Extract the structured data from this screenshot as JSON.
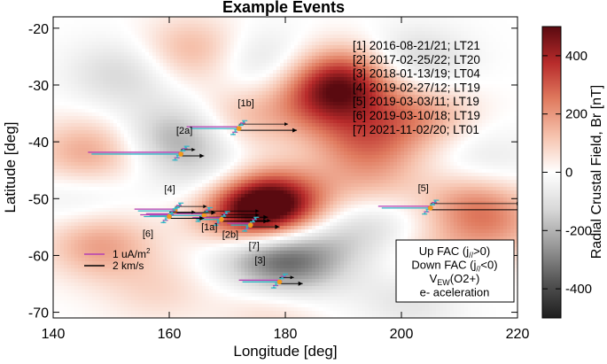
{
  "chart_data": {
    "type": "heatmap",
    "title": "Example Events",
    "xlabel": "Longitude [deg]",
    "ylabel": "Latitude [deg]",
    "xlim": [
      140,
      220
    ],
    "ylim": [
      -71,
      -18
    ],
    "xticks": [
      140,
      160,
      180,
      200,
      220
    ],
    "yticks": [
      -70,
      -60,
      -50,
      -40,
      -30,
      -20
    ],
    "colorbar": {
      "label": "Radial Crustal Field, Br [nT]",
      "range": [
        -500,
        500
      ],
      "ticks": [
        -400,
        -200,
        0,
        200,
        400
      ],
      "colors": [
        "#1e1e1e",
        "#555555",
        "#9a9a9a",
        "#d9d9d9",
        "#ffffff",
        "#f6c2ad",
        "#e07b5f",
        "#b82b2b",
        "#5a0a10"
      ]
    },
    "field_features": [
      {
        "lon": 178,
        "lat": -51,
        "br": 470
      },
      {
        "lon": 173,
        "lat": -52.5,
        "br": 300
      },
      {
        "lon": 190,
        "lat": -29,
        "br": 340
      },
      {
        "lon": 187,
        "lat": -33,
        "br": 240
      },
      {
        "lon": 194,
        "lat": -40,
        "br": 220
      },
      {
        "lon": 203,
        "lat": -35,
        "br": 180
      },
      {
        "lon": 164,
        "lat": -24,
        "br": 160
      },
      {
        "lon": 172,
        "lat": -36,
        "br": 140
      },
      {
        "lon": 146,
        "lat": -42,
        "br": 180
      },
      {
        "lon": 148,
        "lat": -58,
        "br": 190
      },
      {
        "lon": 212,
        "lat": -50.5,
        "br": 180
      },
      {
        "lon": 216,
        "lat": -55,
        "br": 140
      },
      {
        "lon": 205,
        "lat": -61,
        "br": 110
      },
      {
        "lon": 195,
        "lat": -48,
        "br": 120
      },
      {
        "lon": 178,
        "lat": -69,
        "br": 90
      },
      {
        "lon": 158,
        "lat": -66,
        "br": 80
      },
      {
        "lon": 162,
        "lat": -39,
        "br": -220
      },
      {
        "lon": 181,
        "lat": -61.5,
        "br": -280
      },
      {
        "lon": 175,
        "lat": -59,
        "br": -150
      },
      {
        "lon": 152,
        "lat": -28,
        "br": -130
      },
      {
        "lon": 176,
        "lat": -26,
        "br": -120
      },
      {
        "lon": 202,
        "lat": -26,
        "br": -150
      },
      {
        "lon": 202,
        "lat": -67,
        "br": -110
      },
      {
        "lon": 190,
        "lat": -56,
        "br": -100
      },
      {
        "lon": 145,
        "lat": -50,
        "br": -80
      },
      {
        "lon": 214,
        "lat": -44,
        "br": -90
      },
      {
        "lon": 168,
        "lat": -47,
        "br": -110
      },
      {
        "lon": 197,
        "lat": -53.5,
        "br": -80
      }
    ],
    "events": [
      {
        "id": "[1]",
        "date": "2016-08-21/21",
        "lt": "LT21",
        "label": "[1a]",
        "lon": 166,
        "lat": -52.8,
        "west": 156,
        "east": 177
      },
      {
        "id": "[1]",
        "date": "2016-08-21/21",
        "lt": "LT21",
        "label": "[1b]",
        "lon": 172,
        "lat": -37.5,
        "west": 163,
        "east": 182
      },
      {
        "id": "[2]",
        "date": "2017-02-25/22",
        "lt": "LT20",
        "label": "[2a]",
        "lon": 162,
        "lat": -42,
        "west": 146,
        "east": 166
      },
      {
        "id": "[2]",
        "date": "2017-02-25/22",
        "lt": "LT20",
        "label": "[2b]",
        "lon": 169,
        "lat": -53.5,
        "west": 164,
        "east": 177
      },
      {
        "id": "[3]",
        "date": "2018-01-13/19",
        "lt": "LT04",
        "label": "[3]",
        "lon": 179,
        "lat": -64.5,
        "west": 172,
        "east": 183
      },
      {
        "id": "[4]",
        "date": "2019-02-27/12",
        "lt": "LT19",
        "label": "[4]",
        "lon": 161,
        "lat": -52,
        "west": 154,
        "east": 168
      },
      {
        "id": "[5]",
        "date": "2019-03-03/11",
        "lt": "LT19",
        "label": "[5]",
        "lon": 205,
        "lat": -51.5,
        "west": 196,
        "east": 222
      },
      {
        "id": "[6]",
        "date": "2019-03-10/18",
        "lt": "LT19",
        "label": "[6]",
        "lon": 160,
        "lat": -53,
        "west": 155,
        "east": 166
      },
      {
        "id": "[7]",
        "date": "2021-11-02/20",
        "lt": "LT01",
        "label": "[7]",
        "lon": 174,
        "lat": -54.5,
        "west": 170,
        "east": 179
      }
    ],
    "event_list": [
      "[1] 2016-08-21/21; LT21",
      "[2] 2017-02-25/22; LT20",
      "[3] 2018-01-13/19; LT04",
      "[4] 2019-02-27/12; LT19",
      "[5] 2019-03-03/11; LT19",
      "[6] 2019-03-10/18; LT19",
      "[7] 2021-11-02/20; LT01"
    ],
    "scale_bars": [
      {
        "text": "1 uA/m",
        "sup": "2",
        "color": "#b43fb3"
      },
      {
        "text": "2 km/s",
        "color": "#000000"
      }
    ],
    "legend": {
      "placement": "bottom-right",
      "items": [
        {
          "text": "Up FAC (j",
          "sub": "//",
          "tail": ">0)",
          "color": "#b43fb3"
        },
        {
          "text": "Down FAC (j",
          "sub": "//",
          "tail": "<0)",
          "color": "#33b5c6"
        },
        {
          "text": "V",
          "sub": "EW",
          "tail": "(O2+)",
          "color": "#000000"
        },
        {
          "text": "e- aceleration",
          "sub": "",
          "tail": "",
          "color": "#f29a1c"
        }
      ]
    },
    "grid": false
  }
}
